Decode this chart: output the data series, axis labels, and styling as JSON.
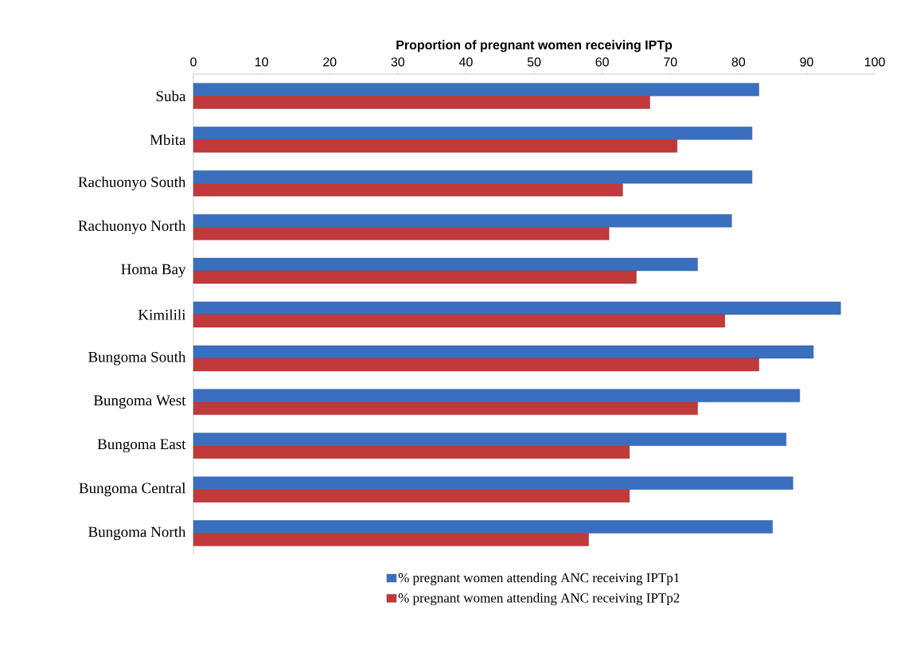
{
  "chart_data": {
    "type": "bar",
    "orientation": "horizontal",
    "xlabel": "Proportion of pregnant women receiving IPTp",
    "categories": [
      "Suba",
      "Mbita",
      "Rachuonyo South",
      "Rachuonyo North",
      "Homa Bay",
      "Kimilili",
      "Bungoma South",
      "Bungoma West",
      "Bungoma East",
      "Bungoma Central",
      "Bungoma North"
    ],
    "series": [
      {
        "name": "% pregnant women attending ANC receiving IPTp1",
        "color": "#3a6fbf",
        "values": [
          83,
          82,
          82,
          79,
          74,
          95,
          91,
          89,
          87,
          88,
          85
        ]
      },
      {
        "name": "% pregnant women attending ANC receiving IPTp2",
        "color": "#c0393b",
        "values": [
          67,
          71,
          63,
          61,
          65,
          78,
          83,
          74,
          64,
          64,
          58
        ]
      }
    ],
    "xlim": [
      0,
      100
    ],
    "xticks": [
      0,
      10,
      20,
      30,
      40,
      50,
      60,
      70,
      80,
      90,
      100
    ],
    "grid": false,
    "legend": "bottom"
  }
}
